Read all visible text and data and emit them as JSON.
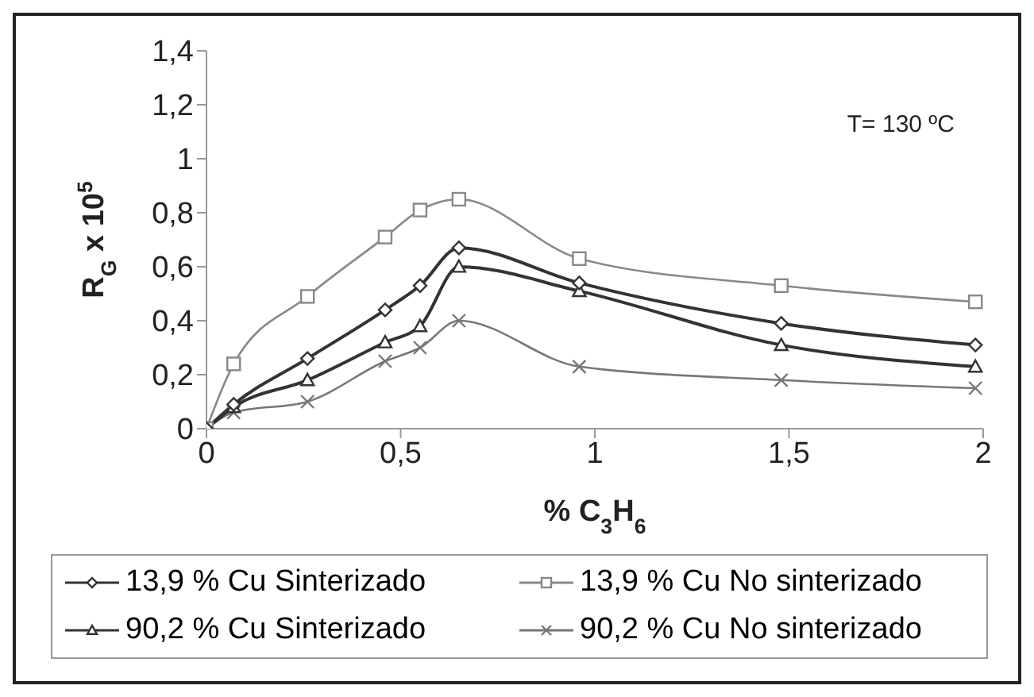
{
  "chart_data": {
    "type": "line",
    "xlabel": "% C$_{3}$H$_{6}$",
    "ylabel": "R$_{G}$ x 10$^{5}$",
    "annotations": [
      "T= 130 ºC"
    ],
    "x": [
      0,
      0.07,
      0.26,
      0.46,
      0.55,
      0.65,
      0.96,
      1.48,
      1.98
    ],
    "series": [
      {
        "name": "13,9 % Cu Sinterizado",
        "color": "#333333",
        "marker": "diamond",
        "values": [
          0,
          0.09,
          0.26,
          0.44,
          0.53,
          0.67,
          0.54,
          0.39,
          0.31
        ]
      },
      {
        "name": "13,9 % Cu No sinterizado",
        "color": "#888888",
        "marker": "square",
        "values": [
          0,
          0.24,
          0.49,
          0.71,
          0.81,
          0.85,
          0.63,
          0.53,
          0.47
        ]
      },
      {
        "name": "90,2 % Cu Sinterizado",
        "color": "#333333",
        "marker": "triangle",
        "values": [
          0,
          0.08,
          0.18,
          0.32,
          0.38,
          0.6,
          0.51,
          0.31,
          0.23
        ]
      },
      {
        "name": "90,2 % Cu No sinterizado",
        "color": "#777777",
        "marker": "cross",
        "values": [
          0,
          0.06,
          0.1,
          0.25,
          0.3,
          0.4,
          0.23,
          0.18,
          0.15
        ]
      }
    ],
    "xlim": [
      0,
      2
    ],
    "xticks": [
      {
        "value": 0,
        "label": "0"
      },
      {
        "value": 0.5,
        "label": "0,5"
      },
      {
        "value": 1,
        "label": "1"
      },
      {
        "value": 1.5,
        "label": "1,5"
      },
      {
        "value": 2,
        "label": "2"
      }
    ],
    "ylim": [
      0,
      1.4
    ],
    "yticks": [
      {
        "value": 0,
        "label": "0"
      },
      {
        "value": 0.2,
        "label": "0,2"
      },
      {
        "value": 0.4,
        "label": "0,4"
      },
      {
        "value": 0.6,
        "label": "0,6"
      },
      {
        "value": 0.8,
        "label": "0,8"
      },
      {
        "value": 1,
        "label": "1"
      },
      {
        "value": 1.2,
        "label": "1,2"
      },
      {
        "value": 1.4,
        "label": "1,4"
      }
    ],
    "grid": false,
    "legend": "bottom"
  }
}
